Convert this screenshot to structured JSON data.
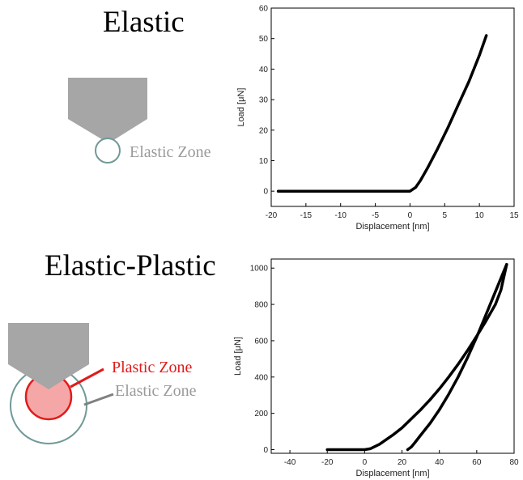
{
  "panels": {
    "top": {
      "title": "Elastic",
      "zone_label": "Elastic Zone"
    },
    "bottom": {
      "title": "Elastic-Plastic",
      "plastic_label": "Plastic Zone",
      "elastic_label": "Elastic Zone"
    }
  },
  "colors": {
    "indenter": "#a6a6a6",
    "elastic_zone_stroke": "#6f9a96",
    "plastic_zone_fill": "#f5a7a7",
    "plastic_zone_stroke": "#e01b1b",
    "plastic_text": "#e01b1b",
    "elastic_text": "#9a9a9a",
    "curve": "#000000"
  },
  "chart_data": [
    {
      "type": "line",
      "xlabel": "Displacement [nm]",
      "ylabel": "Load [μN]",
      "xlim": [
        -20,
        15
      ],
      "ylim": [
        -5,
        60
      ],
      "xticks": [
        -20,
        -15,
        -10,
        -5,
        0,
        5,
        10,
        15
      ],
      "yticks": [
        0,
        10,
        20,
        30,
        40,
        50,
        60
      ],
      "series": [
        {
          "x": [
            -19,
            -15,
            -10,
            -5,
            -2,
            0,
            0.8,
            1.5,
            2.5,
            4,
            5.5,
            7,
            8.5,
            10,
            11
          ],
          "y": [
            0,
            0,
            0,
            0,
            0,
            0,
            1.2,
            3.5,
            7.5,
            14,
            21,
            28.5,
            36,
            44.5,
            51
          ]
        }
      ]
    },
    {
      "type": "line",
      "xlabel": "Displacement [nm]",
      "ylabel": "Load [μN]",
      "xlim": [
        -50,
        80
      ],
      "ylim": [
        -20,
        1050
      ],
      "xticks": [
        -40,
        -20,
        0,
        20,
        40,
        60,
        80
      ],
      "yticks": [
        0,
        200,
        400,
        600,
        800,
        1000
      ],
      "series": [
        {
          "x": [
            -20,
            -10,
            0,
            3,
            8,
            15,
            20,
            25,
            30,
            35,
            40,
            45,
            50,
            55,
            60,
            65,
            70,
            73,
            76
          ],
          "y": [
            0,
            0,
            0,
            5,
            30,
            80,
            120,
            170,
            220,
            275,
            335,
            400,
            470,
            545,
            625,
            710,
            800,
            880,
            1020
          ]
        },
        {
          "x": [
            76,
            72,
            68,
            64,
            60,
            55,
            50,
            45,
            40,
            35,
            30,
            27,
            25,
            23
          ],
          "y": [
            1020,
            920,
            820,
            720,
            620,
            505,
            400,
            305,
            220,
            145,
            80,
            40,
            15,
            0
          ]
        }
      ]
    }
  ]
}
